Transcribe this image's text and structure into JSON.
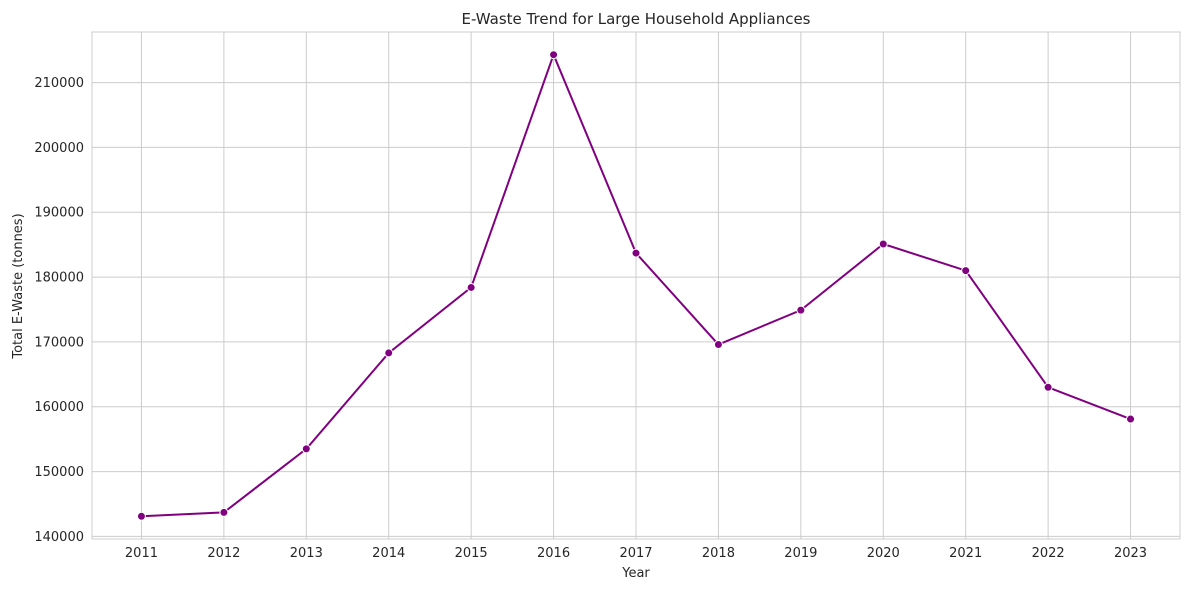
{
  "chart_data": {
    "type": "line",
    "title": "E-Waste Trend for Large Household Appliances",
    "xlabel": "Year",
    "ylabel": "Total E-Waste (tonnes)",
    "x": [
      2011,
      2012,
      2013,
      2014,
      2015,
      2016,
      2017,
      2018,
      2019,
      2020,
      2021,
      2022,
      2023
    ],
    "y": [
      143100,
      143700,
      153500,
      168300,
      178400,
      214300,
      183700,
      169600,
      174900,
      185100,
      181000,
      163000,
      158100
    ],
    "x_ticks": [
      "2011",
      "2012",
      "2013",
      "2014",
      "2015",
      "2016",
      "2017",
      "2018",
      "2019",
      "2020",
      "2021",
      "2022",
      "2023"
    ],
    "y_ticks": [
      140000,
      150000,
      160000,
      170000,
      180000,
      190000,
      200000,
      210000
    ],
    "ylim": [
      139600,
      217800
    ],
    "xlim": [
      2010.4,
      2023.6
    ],
    "grid": true,
    "color": "#800080",
    "marker": "circle"
  }
}
